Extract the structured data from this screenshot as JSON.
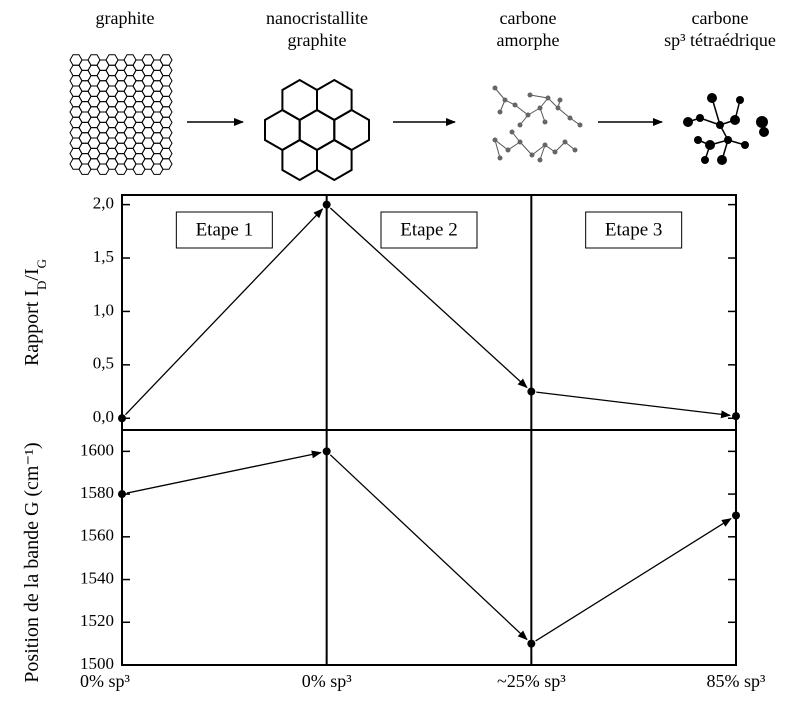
{
  "illustrations": [
    {
      "label": [
        "graphite"
      ]
    },
    {
      "label": [
        "nanocristallite",
        "graphite"
      ]
    },
    {
      "label": [
        "carbone",
        "amorphe"
      ]
    },
    {
      "label": [
        "carbone",
        "sp³ tétraédrique"
      ]
    }
  ],
  "chart_data": [
    {
      "type": "line",
      "ylabel": [
        "Rapport I",
        "D",
        "/I",
        "G"
      ],
      "series": [
        {
          "color": "#000000",
          "values": [
            0,
            2,
            0.25,
            0.02
          ]
        }
      ],
      "ylim": [
        -0.11,
        2.09
      ],
      "yticks": [
        {
          "value": 0,
          "label": "0,0"
        },
        {
          "value": 0.5,
          "label": "0,5"
        },
        {
          "value": 1,
          "label": "1,0"
        },
        {
          "value": 1.5,
          "label": "1,5"
        },
        {
          "value": 2,
          "label": "2,0"
        }
      ],
      "stages": [
        "Etape 1",
        "Etape 2",
        "Etape 3"
      ]
    },
    {
      "type": "line",
      "ylabel": [
        "Position de la bande G (cm⁻¹)"
      ],
      "categories": [
        "0% sp³",
        "0% sp³",
        "~25% sp³",
        "85% sp³"
      ],
      "series": [
        {
          "color": "#000000",
          "values": [
            1580,
            1600,
            1510,
            1570
          ]
        }
      ],
      "ylim": [
        1500,
        1610
      ],
      "yticks": [
        1500,
        1520,
        1540,
        1560,
        1580,
        1600
      ]
    }
  ]
}
